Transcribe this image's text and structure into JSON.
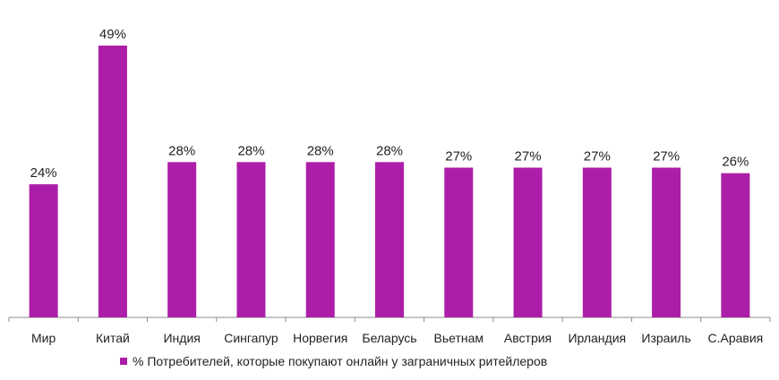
{
  "chart_data": {
    "type": "bar",
    "categories": [
      "Мир",
      "Китай",
      "Индия",
      "Сингапур",
      "Норвегия",
      "Беларусь",
      "Вьетнам",
      "Австрия",
      "Ирландия",
      "Израиль",
      "С.Аравия"
    ],
    "series": [
      {
        "name": "% Потребителей, которые покупают онлайн у заграничных ритейлеров",
        "values": [
          24,
          49,
          28,
          28,
          28,
          28,
          27,
          27,
          27,
          27,
          26
        ],
        "labels": [
          "24%",
          "49%",
          "28%",
          "28%",
          "28%",
          "28%",
          "27%",
          "27%",
          "27%",
          "27%",
          "26%"
        ]
      }
    ],
    "ylim": [
      0,
      49
    ],
    "grid": false,
    "legend": "bottom",
    "colors": {
      "bar": "#ad1ea8",
      "axis": "#8c8c8c"
    }
  }
}
